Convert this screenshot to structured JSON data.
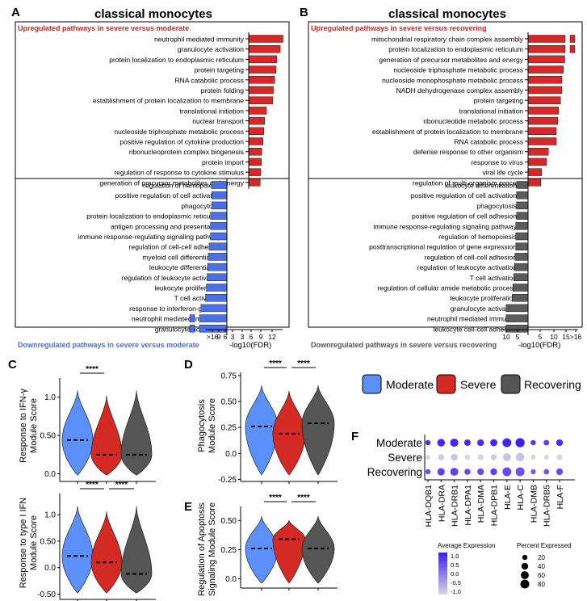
{
  "colors": {
    "up": "#d62828",
    "down_blue": "#4b6fe6",
    "down_grey": "#5b5b5b",
    "moderate": "#5b8ff9",
    "severe": "#d42a23",
    "recovering": "#555555"
  },
  "panelA": {
    "letter": "A",
    "title": "classical monocytes",
    "up_header": "Upregulated pathways in severe versus moderate",
    "down_footer": "Downregulated pathways in severe versus moderate",
    "xlabel": "-log10(FDR)",
    "ticks": [
      ">16",
      "9",
      "6",
      "3",
      "3",
      "6",
      "9",
      "12"
    ]
  },
  "panelB": {
    "letter": "B",
    "title": "classical monocytes",
    "up_header": "Upregulated pathways in severe versus recovering",
    "down_footer": "Downregulated pathways in severe versus recovering",
    "xlabel": "-log10(FDR)",
    "ticks": [
      "10",
      "5",
      "5",
      "10",
      "15",
      ">16"
    ]
  },
  "chart_data": [
    {
      "panel": "A",
      "type": "bar",
      "title": "classical monocytes",
      "xlabel": "-log10(FDR)",
      "up": {
        "categories": [
          "neutrophil mediated immunity",
          "granulocyte activation",
          "protein localization to endoplasmic reticulum",
          "protein targeting",
          "RNA catabolic process",
          "protein folding",
          "establishment of protein localization to membrane",
          "translational initiation",
          "nuclear transport",
          "nucleoside triphosphate metabolic process",
          "positive regulation of cytokine production",
          "ribonucleoprotein complex biogenesis",
          "protein import",
          "regulation of response to cytokine stimulus",
          "generation of precursor metabolites and energy"
        ],
        "values": [
          12.5,
          11.5,
          10.2,
          10.0,
          9.5,
          9.0,
          8.8,
          6.5,
          5.8,
          5.5,
          5.2,
          4.8,
          4.6,
          4.4,
          4.2
        ]
      },
      "down": {
        "categories": [
          "regulation of hemopoiesis",
          "positive regulation of cell activation",
          "phagocytosis",
          "protein localization to endoplasmic reticulum",
          "antigen processing and presentation",
          "immune response-regulating signaling pathway",
          "regulation of cell-cell adhesion",
          "myeloid cell differentiation",
          "leukocyte differentiation",
          "regulation of leukocyte activation",
          "leukocyte proliferation",
          "T cell activation",
          "response to interferon-gamma",
          "neutrophil mediated immunity",
          "granulocyte activation"
        ],
        "values": [
          5.5,
          5.5,
          5.5,
          6.0,
          6.0,
          6.0,
          6.5,
          6.8,
          7.0,
          7.2,
          7.5,
          7.8,
          9.5,
          17,
          17
        ]
      }
    },
    {
      "panel": "B",
      "type": "bar",
      "title": "classical monocytes",
      "xlabel": "-log10(FDR)",
      "up": {
        "categories": [
          "mitochondrial respiratory chain complex assembly",
          "protein localization to endoplasmic reticulum",
          "generation of precursor metabolites and energy",
          "nucleoside triphosphate metabolic process",
          "nucleoside monophosphate metabolic process",
          "NADH dehydrogenase complex assembly",
          "protein targeting",
          "translational initiation",
          "ribonucleotide metabolic process",
          "establishment of protein localization to membrane",
          "RNA catabolic process",
          "defense response to other organism",
          "response to virus",
          "viral life cycle",
          "regulation of multi-organism process"
        ],
        "values": [
          17,
          17,
          13,
          12.5,
          12.0,
          12.0,
          11.5,
          10.8,
          10.5,
          10.0,
          10.0,
          7.2,
          6.5,
          4.8,
          4.5
        ]
      },
      "down": {
        "categories": [
          "leukocyte differentiation",
          "positive regulation of cell activation",
          "phagocytosis",
          "positive regulation of cell adhesion",
          "immune response-regulating signaling pathway",
          "regulation of hemopoiesis",
          "posttranscriptional regulation of gene expression",
          "regulation of cell-cell adhesion",
          "regulation of leukocyte activation",
          "T cell activation",
          "regulation of cellular amide metabolic process",
          "leukocyte proliferation",
          "granulocyte activation",
          "neutrophil mediated immunity",
          "leukocyte cell-cell adhesion"
        ],
        "values": [
          4.2,
          4.2,
          4.2,
          4.2,
          4.5,
          4.5,
          4.5,
          4.8,
          5.0,
          5.2,
          5.5,
          5.8,
          8.0,
          8.0,
          8.0
        ]
      }
    },
    {
      "panel": "C",
      "type": "violin",
      "ylabel": "Response to IFN-γ Module Score",
      "groups": [
        "Moderate",
        "Severe",
        "Recovering"
      ],
      "medians": [
        0.44,
        0.25,
        0.25
      ],
      "ylim": [
        -0.1,
        1.25
      ],
      "yticks": [
        0.0,
        0.5,
        1.0
      ],
      "significance": [
        "****"
      ]
    },
    {
      "panel": "C2",
      "type": "violin",
      "ylabel": "Response to type I IFN Module Score",
      "groups": [
        "Moderate",
        "Severe",
        "Recovering"
      ],
      "medians": [
        0.22,
        0.1,
        -0.12
      ],
      "ylim": [
        -0.6,
        1.4
      ],
      "yticks": [
        -0.5,
        0.0,
        0.5,
        1.0
      ],
      "significance": [
        "****",
        "****"
      ]
    },
    {
      "panel": "D",
      "type": "violin",
      "ylabel": "Phagocytosis Module Score",
      "groups": [
        "Moderate",
        "Severe",
        "Recovering"
      ],
      "medians": [
        0.26,
        0.19,
        0.29
      ],
      "ylim": [
        -0.27,
        0.78
      ],
      "yticks": [
        -0.25,
        0.0,
        0.25,
        0.5,
        0.75
      ],
      "significance": [
        "****",
        "****"
      ]
    },
    {
      "panel": "E",
      "type": "violin",
      "ylabel": "Regulation of Apoptosis Signaling Module Score",
      "groups": [
        "Moderate",
        "Severe",
        "Recovering"
      ],
      "medians": [
        0.26,
        0.34,
        0.26
      ],
      "ylim": [
        -0.08,
        0.62
      ],
      "yticks": [
        0.0,
        0.25,
        0.5
      ],
      "significance": [
        "****",
        "****"
      ]
    },
    {
      "panel": "F",
      "type": "dotplot",
      "rows": [
        "Moderate",
        "Severe",
        "Recovering"
      ],
      "columns": [
        "HLA-DQB1",
        "HLA-DRA",
        "HLA-DRB1",
        "HLA-DPA1",
        "HLA-DMA",
        "HLA-DPB1",
        "HLA-E",
        "HLA-C",
        "HLA-DMB",
        "HLA-DRB5",
        "HLA-F"
      ],
      "avg_expression": [
        [
          0.8,
          0.9,
          0.9,
          0.9,
          0.8,
          0.9,
          0.9,
          1.0,
          0.7,
          0.6,
          0.8
        ],
        [
          -1,
          -0.9,
          -0.8,
          -1,
          -1,
          -0.9,
          -0.8,
          -0.8,
          -1,
          -1,
          -1
        ],
        [
          0.4,
          0.6,
          0.6,
          0.5,
          0.5,
          0.6,
          0.5,
          0.4,
          0.3,
          0.4,
          0.5
        ]
      ],
      "pct_expressed": [
        [
          20,
          55,
          65,
          35,
          40,
          45,
          80,
          85,
          20,
          25,
          40
        ],
        [
          15,
          30,
          40,
          20,
          30,
          30,
          60,
          70,
          15,
          15,
          25
        ],
        [
          20,
          50,
          60,
          30,
          38,
          40,
          78,
          82,
          18,
          22,
          38
        ]
      ],
      "color_legend_title": "Average Expression",
      "color_ticks": [
        "1.0",
        "0.5",
        "0.0",
        "-0.5",
        "-1.0"
      ],
      "size_legend_title": "Percent Expressed",
      "size_ticks": [
        20,
        40,
        60,
        80
      ]
    }
  ],
  "panelC": {
    "letter": "C",
    "ylabel_top_1": "Response to IFN-γ",
    "ylabel_top_2": "Module Score",
    "ylabel_bot_1": "Response to type I IFN",
    "ylabel_bot_2": "Module Score"
  },
  "panelD": {
    "letter": "D",
    "ylabel_1": "Phagocytosis",
    "ylabel_2": "Module Score"
  },
  "panelE": {
    "letter": "E",
    "ylabel_1": "Regulation of Apoptosis",
    "ylabel_2": "Signaling Module Score"
  },
  "panelF": {
    "letter": "F"
  },
  "legend": {
    "items": [
      "Moderate",
      "Severe",
      "Recovering"
    ]
  }
}
